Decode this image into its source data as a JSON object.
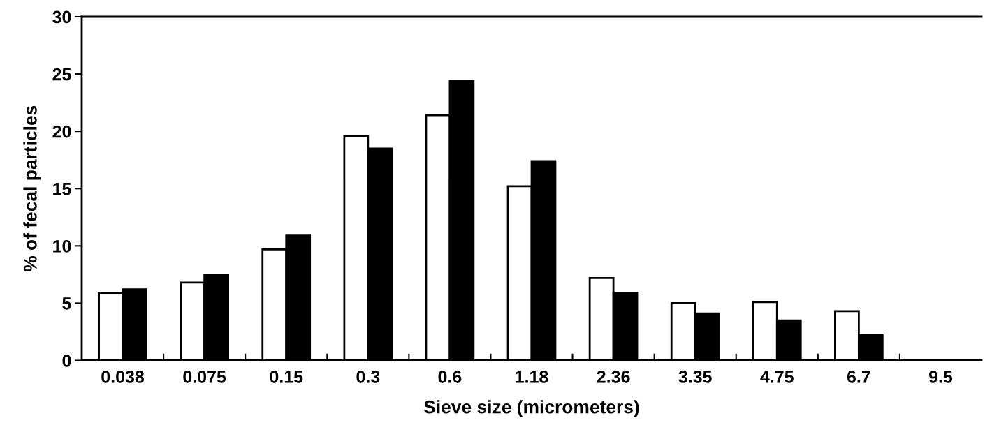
{
  "chart_data": {
    "type": "bar",
    "xlabel": "Sieve size (micrometers)",
    "ylabel": "% of fecal particles",
    "categories": [
      "0.038",
      "0.075",
      "0.15",
      "0.3",
      "0.6",
      "1.18",
      "2.36",
      "3.35",
      "4.75",
      "6.7",
      "9.5"
    ],
    "series": [
      {
        "color": "#ffffff",
        "values": [
          5.9,
          6.8,
          9.7,
          19.6,
          21.4,
          15.2,
          7.2,
          5.0,
          5.1,
          4.3,
          null
        ]
      },
      {
        "color": "#000000",
        "values": [
          6.2,
          7.5,
          10.9,
          18.5,
          24.4,
          17.4,
          5.9,
          4.1,
          3.5,
          2.2,
          null
        ]
      }
    ],
    "ylim": [
      0,
      30
    ],
    "yticks": [
      0,
      5,
      10,
      15,
      20,
      25,
      30
    ],
    "grid": false,
    "legend": false
  }
}
